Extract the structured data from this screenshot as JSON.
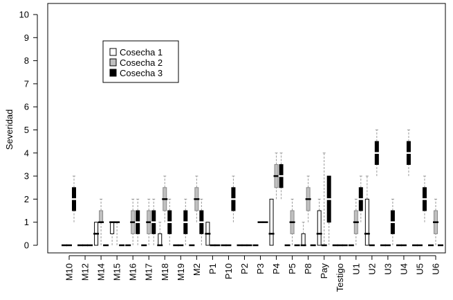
{
  "chart_data": {
    "type": "boxplot",
    "ylabel": "Severidad",
    "xlabel": "",
    "ylim": [
      0,
      10
    ],
    "yticks": [
      0,
      1,
      2,
      3,
      4,
      5,
      6,
      7,
      8,
      9,
      10
    ],
    "legend": {
      "placement": "top-left",
      "entries": [
        {
          "name": "Cosecha 1",
          "color": "#ffffff"
        },
        {
          "name": "Cosecha 2",
          "color": "#c0c0c0"
        },
        {
          "name": "Cosecha 3",
          "color": "#000000"
        }
      ]
    },
    "categories": [
      "M10",
      "M12",
      "M14",
      "M15",
      "M16",
      "M17",
      "M18",
      "M19",
      "M2",
      "P1",
      "P10",
      "P2",
      "P3",
      "P4",
      "P5",
      "P8",
      "Pay",
      "Testigo",
      "U1",
      "U2",
      "U3",
      "U4",
      "U5",
      "U6"
    ],
    "series": [
      {
        "name": "Cosecha 1",
        "color": "#ffffff",
        "boxes": [
          [
            0,
            0,
            0,
            0,
            0
          ],
          [
            0,
            0,
            0,
            0,
            0
          ],
          [
            0,
            0,
            0.5,
            1,
            1
          ],
          [
            0,
            0.5,
            1,
            1,
            1
          ],
          [
            0,
            0,
            0,
            0,
            0
          ],
          [
            0,
            0,
            0,
            0,
            0
          ],
          [
            0,
            0,
            0,
            0.5,
            1
          ],
          [
            0,
            0,
            0,
            0,
            0
          ],
          [
            0,
            0,
            0,
            0,
            0
          ],
          [
            0,
            0,
            0.5,
            1,
            1
          ],
          [
            0,
            0,
            0,
            0,
            0
          ],
          [
            0,
            0,
            0,
            0,
            0
          ],
          [
            0,
            0,
            0,
            0,
            0
          ],
          [
            0,
            0,
            0.5,
            2,
            2
          ],
          [
            0,
            0,
            0,
            0,
            0
          ],
          [
            0,
            0,
            0,
            0.5,
            1
          ],
          [
            0,
            0,
            0.5,
            1.5,
            2
          ],
          [
            0,
            0,
            0,
            0,
            0
          ],
          [
            0,
            0,
            0,
            0,
            0
          ],
          [
            0,
            0,
            0.5,
            2,
            3
          ],
          [
            0,
            0,
            0,
            0,
            0
          ],
          [
            0,
            0,
            0,
            0,
            0
          ],
          [
            0,
            0,
            0,
            0,
            0
          ],
          [
            0,
            0,
            0,
            0,
            0
          ]
        ]
      },
      {
        "name": "Cosecha 2",
        "color": "#c0c0c0",
        "boxes": [
          [
            0,
            0,
            0,
            0,
            0
          ],
          [
            0,
            0,
            0,
            0,
            0
          ],
          [
            0,
            1,
            1,
            1.5,
            2
          ],
          [
            0,
            1,
            1,
            1,
            1
          ],
          [
            0,
            0.5,
            1,
            1.5,
            2
          ],
          [
            0,
            0.5,
            1,
            1.5,
            2
          ],
          [
            1,
            1.5,
            2,
            2.5,
            3
          ],
          [
            0,
            0,
            0,
            0,
            0
          ],
          [
            1,
            1.5,
            2,
            2.5,
            3
          ],
          [
            0,
            0,
            0,
            0,
            0
          ],
          [
            0,
            0,
            0,
            0,
            0
          ],
          [
            0,
            0,
            0,
            0,
            0
          ],
          [
            1,
            1,
            1,
            1,
            1
          ],
          [
            2,
            2.5,
            3,
            3.5,
            4
          ],
          [
            0,
            0.5,
            1,
            1.5,
            2
          ],
          [
            1,
            1.5,
            2,
            2.5,
            3
          ],
          [
            0,
            0,
            0,
            0,
            4
          ],
          [
            0,
            0,
            0,
            0,
            0
          ],
          [
            0,
            0.5,
            1,
            1.5,
            2
          ],
          [
            0,
            0,
            0,
            0,
            0
          ],
          [
            0,
            0,
            0,
            0,
            0
          ],
          [
            0,
            0,
            0,
            0,
            0
          ],
          [
            0,
            0,
            0,
            0,
            0
          ],
          [
            0,
            0.5,
            1,
            1.5,
            2
          ]
        ]
      },
      {
        "name": "Cosecha 3",
        "color": "#000000",
        "boxes": [
          [
            1,
            1.5,
            2,
            2.5,
            3
          ],
          [
            0,
            0,
            0,
            0,
            0
          ],
          [
            0,
            0,
            0,
            0,
            0
          ],
          [
            0,
            0,
            0,
            0,
            0
          ],
          [
            0,
            0.5,
            1,
            1.5,
            2
          ],
          [
            0,
            0.5,
            1,
            1.5,
            2
          ],
          [
            0,
            0.5,
            1,
            1.5,
            2
          ],
          [
            0,
            0.5,
            1,
            1.5,
            2
          ],
          [
            0,
            0.5,
            1,
            1.5,
            2
          ],
          [
            0,
            0,
            0,
            0,
            0
          ],
          [
            1,
            1.5,
            2,
            2.5,
            3
          ],
          [
            0,
            0,
            0,
            0,
            0
          ],
          [
            1,
            1,
            1,
            1,
            1
          ],
          [
            2,
            2.5,
            3,
            3.5,
            4
          ],
          [
            0,
            0,
            0,
            0,
            0
          ],
          [
            0,
            0,
            0,
            0,
            0
          ],
          [
            0,
            1,
            2,
            3,
            3
          ],
          [
            0,
            0,
            0,
            0,
            0
          ],
          [
            1,
            1.5,
            2,
            2.5,
            3
          ],
          [
            3,
            3.5,
            4,
            4.5,
            5
          ],
          [
            0,
            0.5,
            1,
            1.5,
            2
          ],
          [
            3,
            3.5,
            4,
            4.5,
            5
          ],
          [
            1,
            1.5,
            2,
            2.5,
            3
          ],
          [
            0,
            0,
            0,
            0,
            0
          ]
        ]
      }
    ]
  }
}
